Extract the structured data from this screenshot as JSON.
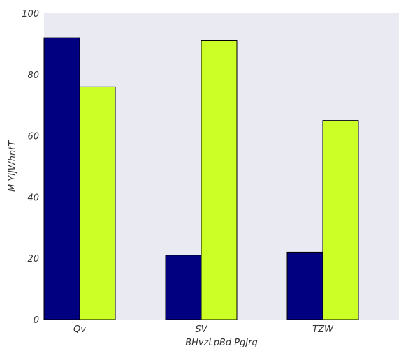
{
  "chart_data": {
    "type": "bar",
    "categories": [
      "Qv",
      "SV",
      "TZW"
    ],
    "series": [
      {
        "values": [
          92,
          21,
          22
        ],
        "color": "#000080"
      },
      {
        "values": [
          76,
          91,
          65
        ],
        "color": "#ccff26"
      }
    ],
    "xlabel": "BHvzLpBd PgJrq",
    "ylabel": "M YIJWhntT",
    "ylim": [
      0,
      100
    ],
    "yticks": [
      0,
      20,
      40,
      60,
      80,
      100
    ],
    "grid": false,
    "background": "#eaeaf2"
  }
}
